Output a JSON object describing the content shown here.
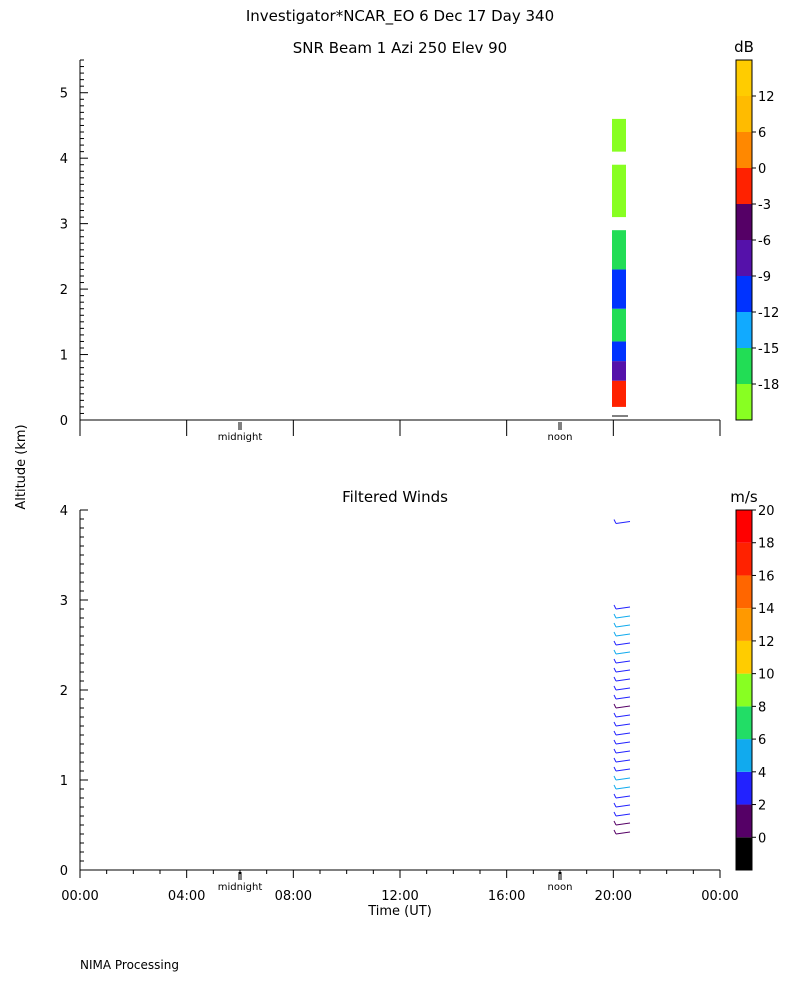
{
  "header": {
    "title": "Investigator*NCAR_EO   6 Dec 17 Day 340"
  },
  "shared_ylabel": "Altitude (km)",
  "footer": {
    "text": "NIMA Processing"
  },
  "chart_data": [
    {
      "type": "heatmap",
      "title": "SNR Beam 1 Azi 250 Elev 90",
      "ylim": [
        0,
        5.5
      ],
      "yticks": [
        "0",
        "1",
        "2",
        "3",
        "4",
        "5"
      ],
      "ytick_values": [
        0,
        1,
        2,
        3,
        4,
        5
      ],
      "xlim_hours": [
        0,
        24
      ],
      "day_markers": [
        {
          "label": "midnight",
          "hour": 6
        },
        {
          "label": "noon",
          "hour": 18
        }
      ],
      "colorbar": {
        "label": "dB",
        "tick_labels": [
          "-18",
          "-15",
          "-12",
          "-9",
          "-6",
          "-3",
          "0",
          "6",
          "12"
        ],
        "colors": [
          "#88ff22",
          "#22dd55",
          "#11aaff",
          "#0033ff",
          "#5511aa",
          "#550066",
          "#ff2200",
          "#ff8800",
          "#ffbb00",
          "#ffcc00"
        ]
      },
      "data_region": {
        "time_start": "20:00",
        "time_end": "20:40",
        "altitude_min_km": 0.2,
        "altitude_max_km": 4.6
      },
      "cells": [
        {
          "t": 20.1,
          "alt": [
            0.2,
            0.6
          ],
          "dB": 0
        },
        {
          "t": 20.1,
          "alt": [
            0.6,
            0.9
          ],
          "dB": -6
        },
        {
          "t": 20.1,
          "alt": [
            0.9,
            1.2
          ],
          "dB": -9
        },
        {
          "t": 20.1,
          "alt": [
            1.2,
            1.7
          ],
          "dB": -15
        },
        {
          "t": 20.1,
          "alt": [
            1.7,
            2.3
          ],
          "dB": -9
        },
        {
          "t": 20.1,
          "alt": [
            2.3,
            2.9
          ],
          "dB": -15
        },
        {
          "t": 20.1,
          "alt": [
            3.1,
            3.9
          ],
          "dB": -18
        },
        {
          "t": 20.1,
          "alt": [
            4.1,
            4.6
          ],
          "dB": -18
        }
      ]
    },
    {
      "type": "scatter",
      "title": "Filtered Winds",
      "xlabel": "Time (UT)",
      "ylim": [
        0,
        4
      ],
      "yticks": [
        "0",
        "1",
        "2",
        "3",
        "4"
      ],
      "ytick_values": [
        0,
        1,
        2,
        3,
        4
      ],
      "xticks": [
        "00:00",
        "04:00",
        "08:00",
        "12:00",
        "16:00",
        "20:00",
        "00:00"
      ],
      "xtick_hours": [
        0,
        4,
        8,
        12,
        16,
        20,
        24
      ],
      "day_markers": [
        {
          "label": "midnight",
          "hour": 6
        },
        {
          "label": "noon",
          "hour": 18
        }
      ],
      "colorbar": {
        "label": "m/s",
        "tick_labels": [
          "0",
          "2",
          "4",
          "6",
          "8",
          "10",
          "12",
          "14",
          "16",
          "18",
          "20"
        ],
        "colors": [
          "#000000",
          "#550066",
          "#2222ff",
          "#11aaee",
          "#22dd66",
          "#88ff22",
          "#ffcc00",
          "#ff9900",
          "#ff6600",
          "#ff2200",
          "#ff0000"
        ]
      },
      "barbs": [
        {
          "t": 20.1,
          "alt": 3.85,
          "speed": 4
        },
        {
          "t": 20.1,
          "alt": 2.9,
          "speed": 4
        },
        {
          "t": 20.1,
          "alt": 2.8,
          "speed": 6
        },
        {
          "t": 20.1,
          "alt": 2.7,
          "speed": 6
        },
        {
          "t": 20.1,
          "alt": 2.6,
          "speed": 6
        },
        {
          "t": 20.1,
          "alt": 2.5,
          "speed": 4
        },
        {
          "t": 20.1,
          "alt": 2.4,
          "speed": 6
        },
        {
          "t": 20.1,
          "alt": 2.3,
          "speed": 4
        },
        {
          "t": 20.1,
          "alt": 2.2,
          "speed": 4
        },
        {
          "t": 20.1,
          "alt": 2.1,
          "speed": 4
        },
        {
          "t": 20.1,
          "alt": 2.0,
          "speed": 4
        },
        {
          "t": 20.1,
          "alt": 1.9,
          "speed": 4
        },
        {
          "t": 20.1,
          "alt": 1.8,
          "speed": 2
        },
        {
          "t": 20.1,
          "alt": 1.7,
          "speed": 4
        },
        {
          "t": 20.1,
          "alt": 1.6,
          "speed": 4
        },
        {
          "t": 20.1,
          "alt": 1.5,
          "speed": 4
        },
        {
          "t": 20.1,
          "alt": 1.4,
          "speed": 4
        },
        {
          "t": 20.1,
          "alt": 1.3,
          "speed": 4
        },
        {
          "t": 20.1,
          "alt": 1.2,
          "speed": 4
        },
        {
          "t": 20.1,
          "alt": 1.1,
          "speed": 4
        },
        {
          "t": 20.1,
          "alt": 1.0,
          "speed": 6
        },
        {
          "t": 20.1,
          "alt": 0.9,
          "speed": 6
        },
        {
          "t": 20.1,
          "alt": 0.8,
          "speed": 4
        },
        {
          "t": 20.1,
          "alt": 0.7,
          "speed": 4
        },
        {
          "t": 20.1,
          "alt": 0.6,
          "speed": 4
        },
        {
          "t": 20.1,
          "alt": 0.5,
          "speed": 2
        },
        {
          "t": 20.1,
          "alt": 0.4,
          "speed": 2
        }
      ]
    }
  ]
}
